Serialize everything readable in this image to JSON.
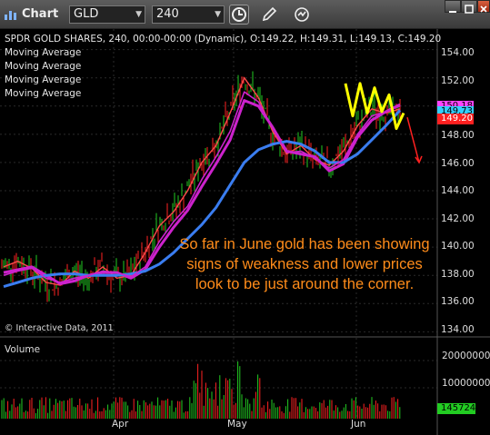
{
  "toolbar": {
    "title": "Chart",
    "symbol": "GLD",
    "interval": "240"
  },
  "chart": {
    "header": "SPDR GOLD SHARES, 240, 00:00-00:00 (Dynamic), O:149.22, H:149.31, L:149.13, C:149.20",
    "indicators": [
      "Moving Average",
      "Moving Average",
      "Moving Average",
      "Moving Average"
    ],
    "annotation": "So  far in June gold has been showing signs of weakness and lower prices look to be just around the corner.",
    "copyright": "© Interactive Data, 2011",
    "price_tags": [
      {
        "label": "150.18",
        "color": "#ff44ff"
      },
      {
        "label": "149.73",
        "color": "#33d0ff"
      },
      {
        "label": "149.20",
        "color": "#ff2020"
      }
    ],
    "volume_title": "Volume",
    "volume_tag": "145724",
    "colors": {
      "up_bar": "#22cc22",
      "down_bar": "#ff2222",
      "ma_fast": "#ff4a4a",
      "ma_mid": "#cc22cc",
      "ma_slow": "#3a7df0",
      "projection": "#ffff00",
      "arrow": "#ff2020",
      "annotation": "#ff8c1a"
    }
  },
  "chart_data": {
    "type": "line",
    "title": "SPDR GOLD SHARES, 240, 00:00-00:00 (Dynamic), O:149.22, H:149.31, L:149.13, C:149.20",
    "x_ticks": [
      "Apr",
      "May",
      "Jun"
    ],
    "y_ticks": [
      "154.00",
      "152.00",
      "150.00",
      "148.00",
      "146.00",
      "144.00",
      "142.00",
      "140.00",
      "138.00",
      "136.00",
      "134.00"
    ],
    "ylim": [
      133.7,
      155.2
    ],
    "volume_ticks": [
      "20000000",
      "10000000"
    ],
    "series": [
      {
        "name": "Moving Average",
        "values": [
          138.6,
          139.0,
          138.5,
          137.5,
          137.3,
          138.3,
          137.8,
          138.6,
          137.8,
          138.0,
          139.6,
          141.5,
          142.5,
          144.0,
          146.0,
          147.2,
          149.5,
          152.0,
          150.6,
          148.2,
          146.6,
          147.2,
          146.2,
          145.8,
          146.8,
          148.6,
          149.8,
          149.5,
          149.8
        ]
      },
      {
        "name": "Moving Average",
        "values": [
          138.2,
          138.4,
          138.6,
          138.0,
          137.4,
          137.6,
          138.0,
          138.2,
          138.2,
          137.8,
          138.4,
          140.0,
          141.4,
          142.6,
          144.3,
          145.9,
          147.6,
          150.4,
          150.0,
          148.5,
          146.8,
          146.6,
          146.4,
          145.4,
          145.9,
          147.8,
          149.0,
          149.6,
          150.1
        ]
      },
      {
        "name": "Moving Average",
        "values": [
          137.2,
          137.5,
          137.8,
          138.0,
          138.1,
          138.1,
          138.0,
          138.0,
          138.0,
          138.1,
          138.3,
          138.8,
          139.6,
          140.6,
          141.6,
          142.8,
          144.4,
          146.0,
          146.9,
          147.3,
          147.5,
          147.3,
          146.8,
          146.0,
          146.0,
          146.6,
          147.6,
          148.6,
          149.7
        ]
      },
      {
        "name": "Moving Average",
        "values": [
          138.0,
          138.3,
          138.5,
          137.8,
          137.5,
          137.8,
          138.0,
          138.3,
          138.2,
          137.9,
          138.6,
          140.4,
          141.8,
          142.9,
          144.8,
          146.4,
          148.2,
          151.0,
          150.3,
          148.4,
          146.7,
          146.8,
          146.3,
          145.6,
          146.2,
          148.0,
          149.3,
          149.6,
          150.0
        ]
      }
    ],
    "projection": [
      151.6,
      149.3,
      151.6,
      149.5,
      151.3,
      149.6,
      150.8,
      148.4,
      149.5
    ],
    "last_close": 149.2
  }
}
